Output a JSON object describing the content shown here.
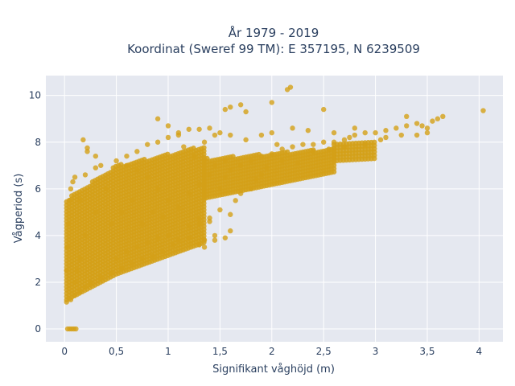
{
  "chart_data": {
    "type": "scatter",
    "title_line1": "År 1979 - 2019",
    "title_line2": "Koordinat (Sweref 99 TM): E 357195, N 6239509",
    "xlabel": "Signifikant våghöjd (m)",
    "ylabel": "Vågperiod (s)",
    "xlim": [
      -0.18,
      4.23
    ],
    "ylim": [
      -0.55,
      10.85
    ],
    "x_ticks": [
      0,
      0.5,
      1,
      1.5,
      2,
      2.5,
      3,
      3.5,
      4
    ],
    "x_tick_labels": [
      "0",
      "0,5",
      "1",
      "1,5",
      "2",
      "2,5",
      "3",
      "3,5",
      "4"
    ],
    "y_ticks": [
      0,
      2,
      4,
      6,
      8,
      10
    ],
    "y_tick_labels": [
      "0",
      "2",
      "4",
      "6",
      "8",
      "10"
    ],
    "grid": true,
    "colors": {
      "marker": "#D4A017",
      "plot_bg": "#E5E8F0",
      "grid": "#ffffff"
    },
    "series": [
      {
        "points": [
          [
            0.03,
            0
          ],
          [
            0.05,
            0
          ],
          [
            0.07,
            0
          ],
          [
            0.09,
            0
          ],
          [
            0.11,
            0
          ],
          [
            0.02,
            1.15
          ],
          [
            0.06,
            1.25
          ],
          [
            0.1,
            1.45
          ],
          [
            0.15,
            1.6
          ],
          [
            0.2,
            1.8
          ],
          [
            0.25,
            2.0
          ],
          [
            0.02,
            2.5
          ],
          [
            0.03,
            3.5
          ],
          [
            0.04,
            4.5
          ],
          [
            0.05,
            5.5
          ],
          [
            0.06,
            6.0
          ],
          [
            0.08,
            6.3
          ],
          [
            0.1,
            6.5
          ],
          [
            0.15,
            5.5
          ],
          [
            0.2,
            6.6
          ],
          [
            0.3,
            6.9
          ],
          [
            0.35,
            7.0
          ],
          [
            0.5,
            7.2
          ],
          [
            0.6,
            7.4
          ],
          [
            0.7,
            7.6
          ],
          [
            0.8,
            7.9
          ],
          [
            0.9,
            8.0
          ],
          [
            1.0,
            8.2
          ],
          [
            1.1,
            8.3
          ],
          [
            1.2,
            8.55
          ],
          [
            1.3,
            8.55
          ],
          [
            1.4,
            8.6
          ],
          [
            1.5,
            8.4
          ],
          [
            0.22,
            7.6
          ],
          [
            0.18,
            8.1
          ],
          [
            0.3,
            7.4
          ],
          [
            0.25,
            1.9
          ],
          [
            0.35,
            2.2
          ],
          [
            0.45,
            2.4
          ],
          [
            0.55,
            2.6
          ],
          [
            0.65,
            2.8
          ],
          [
            0.75,
            3.0
          ],
          [
            0.85,
            3.1
          ],
          [
            0.95,
            3.3
          ],
          [
            0.5,
            3.0
          ],
          [
            0.6,
            3.3
          ],
          [
            0.7,
            3.5
          ],
          [
            0.8,
            3.7
          ],
          [
            0.9,
            3.9
          ],
          [
            1.0,
            4.0
          ],
          [
            1.05,
            3.6
          ],
          [
            1.1,
            3.8
          ],
          [
            1.2,
            3.9
          ],
          [
            1.3,
            3.6
          ],
          [
            1.35,
            3.5
          ],
          [
            1.45,
            4.0
          ],
          [
            1.55,
            3.9
          ],
          [
            1.6,
            4.2
          ],
          [
            1.2,
            4.4
          ],
          [
            1.3,
            4.5
          ],
          [
            1.4,
            4.6
          ],
          [
            1.5,
            5.1
          ],
          [
            1.6,
            4.9
          ],
          [
            1.65,
            5.5
          ],
          [
            1.7,
            5.8
          ],
          [
            1.5,
            6.0
          ],
          [
            1.55,
            6.5
          ],
          [
            1.6,
            6.8
          ],
          [
            1.7,
            7.0
          ],
          [
            1.8,
            7.2
          ],
          [
            1.9,
            7.4
          ],
          [
            2.0,
            7.5
          ],
          [
            2.1,
            7.7
          ],
          [
            2.2,
            7.8
          ],
          [
            2.3,
            7.9
          ],
          [
            2.4,
            7.9
          ],
          [
            2.5,
            8.0
          ],
          [
            2.6,
            8.0
          ],
          [
            2.7,
            8.1
          ],
          [
            2.8,
            8.3
          ],
          [
            2.9,
            8.4
          ],
          [
            3.0,
            8.4
          ],
          [
            3.1,
            8.5
          ],
          [
            3.2,
            8.6
          ],
          [
            3.3,
            8.7
          ],
          [
            3.4,
            8.8
          ],
          [
            3.45,
            8.7
          ],
          [
            3.55,
            8.9
          ],
          [
            3.6,
            9.0
          ],
          [
            3.65,
            9.1
          ],
          [
            3.3,
            9.1
          ],
          [
            3.5,
            8.6
          ],
          [
            2.8,
            8.6
          ],
          [
            2.5,
            9.4
          ],
          [
            2.0,
            9.7
          ],
          [
            2.15,
            10.25
          ],
          [
            2.18,
            10.35
          ],
          [
            1.55,
            9.4
          ],
          [
            1.6,
            9.5
          ],
          [
            1.7,
            9.6
          ],
          [
            1.75,
            9.3
          ],
          [
            4.04,
            9.35
          ],
          [
            0.9,
            9.0
          ],
          [
            1.0,
            8.7
          ],
          [
            1.1,
            8.4
          ],
          [
            2.2,
            8.6
          ],
          [
            2.35,
            8.5
          ],
          [
            2.6,
            8.4
          ],
          [
            2.75,
            8.2
          ],
          [
            3.05,
            8.1
          ],
          [
            0.22,
            7.75
          ],
          [
            1.3,
            4.7
          ],
          [
            1.4,
            4.75
          ],
          [
            1.35,
            3.8
          ],
          [
            1.45,
            3.8
          ],
          [
            1.8,
            6.0
          ],
          [
            1.9,
            6.6
          ],
          [
            1.0,
            5.5
          ],
          [
            0.9,
            6.0
          ],
          [
            0.8,
            6.5
          ],
          [
            0.7,
            6.8
          ],
          [
            0.6,
            7.0
          ],
          [
            0.4,
            6.0
          ],
          [
            0.3,
            5.0
          ],
          [
            0.2,
            4.0
          ],
          [
            0.15,
            3.0
          ],
          [
            0.12,
            2.5
          ],
          [
            0.1,
            2.0
          ],
          [
            0.45,
            4.5
          ],
          [
            0.55,
            5.0
          ],
          [
            0.65,
            5.5
          ],
          [
            0.75,
            4.5
          ],
          [
            0.85,
            5.0
          ],
          [
            0.95,
            4.8
          ],
          [
            1.1,
            5.2
          ],
          [
            1.2,
            5.8
          ],
          [
            1.3,
            6.2
          ],
          [
            1.4,
            6.6
          ],
          [
            1.45,
            7.0
          ],
          [
            1.55,
            7.2
          ],
          [
            1.25,
            7.4
          ],
          [
            1.15,
            7.8
          ],
          [
            1.35,
            8.0
          ],
          [
            1.45,
            8.3
          ],
          [
            1.6,
            8.3
          ],
          [
            1.75,
            8.1
          ],
          [
            1.9,
            8.3
          ],
          [
            2.0,
            8.4
          ],
          [
            2.05,
            7.9
          ],
          [
            2.25,
            7.1
          ],
          [
            2.4,
            7.6
          ],
          [
            2.55,
            7.7
          ],
          [
            2.7,
            7.8
          ],
          [
            2.9,
            7.9
          ],
          [
            3.1,
            8.2
          ],
          [
            3.25,
            8.3
          ],
          [
            3.4,
            8.3
          ],
          [
            3.5,
            8.4
          ],
          [
            1.85,
            6.4
          ],
          [
            1.95,
            6.9
          ],
          [
            2.1,
            7.2
          ]
        ]
      }
    ]
  }
}
